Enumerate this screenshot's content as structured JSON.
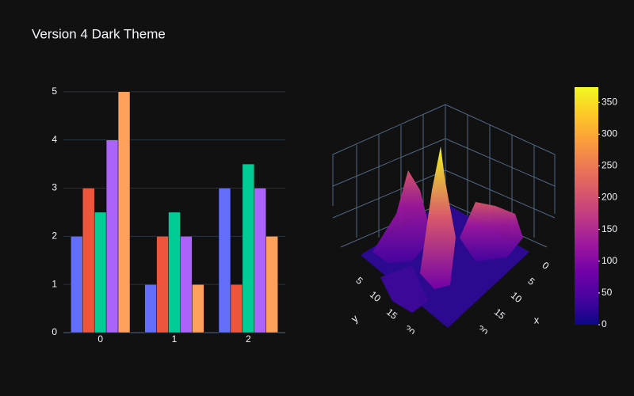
{
  "title": "Version 4 Dark Theme",
  "chart_data": [
    {
      "type": "bar",
      "categories": [
        "0",
        "1",
        "2"
      ],
      "series": [
        {
          "color": "#636efa",
          "values": [
            2,
            1,
            3
          ]
        },
        {
          "color": "#EF553B",
          "values": [
            3,
            2,
            1
          ]
        },
        {
          "color": "#00cc96",
          "values": [
            2.5,
            2.5,
            3.5
          ]
        },
        {
          "color": "#ab63fa",
          "values": [
            4,
            2,
            3
          ]
        },
        {
          "color": "#FFA15A",
          "values": [
            5,
            1,
            2
          ]
        }
      ],
      "ylim": [
        0,
        5.26
      ],
      "yticks": [
        0,
        1,
        2,
        3,
        4,
        5
      ],
      "grid": true
    },
    {
      "type": "surface",
      "x_axis_label": "x",
      "y_axis_label": "y",
      "xticks": [
        0,
        5,
        10,
        15,
        20
      ],
      "yticks": [
        5,
        10,
        15,
        20
      ],
      "colorscale": [
        "#0d0887",
        "#46039f",
        "#7201a8",
        "#9c179e",
        "#bd3786",
        "#d8576b",
        "#ed7953",
        "#fb9f3a",
        "#fdca26",
        "#f0f921"
      ],
      "zlim": [
        0,
        374
      ],
      "zticks": [
        0,
        50,
        100,
        150,
        200,
        250,
        300,
        350
      ]
    }
  ]
}
